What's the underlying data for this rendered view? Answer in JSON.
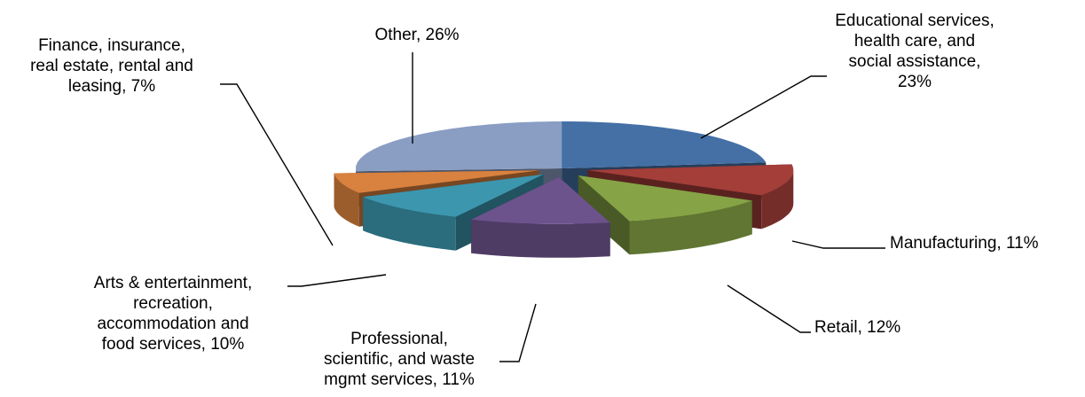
{
  "chart_data": {
    "type": "pie",
    "style": "3d-exploded",
    "legend": "none",
    "slices": [
      {
        "name": "Educational services, health care, and social assistance",
        "value": 23,
        "label_lines": [
          "Educational services,",
          "health care, and",
          "social assistance,",
          "23%"
        ],
        "color": "#4470A6"
      },
      {
        "name": "Manufacturing",
        "value": 11,
        "label_lines": [
          "Manufacturing, 11%"
        ],
        "color": "#A33E39"
      },
      {
        "name": "Retail",
        "value": 12,
        "label_lines": [
          "Retail, 12%"
        ],
        "color": "#86A446"
      },
      {
        "name": "Professional, scientific, and waste mgmt services",
        "value": 11,
        "label_lines": [
          "Professional,",
          "scientific, and waste",
          "mgmt services, 11%"
        ],
        "color": "#6C538C"
      },
      {
        "name": "Arts & entertainment, recreation, accommodation and food services",
        "value": 10,
        "label_lines": [
          "Arts & entertainment,",
          "recreation,",
          "accommodation and",
          "food services, 10%"
        ],
        "color": "#3C96AE"
      },
      {
        "name": "Finance, insurance, real estate, rental and leasing",
        "value": 7,
        "label_lines": [
          "Finance, insurance,",
          "real estate, rental and",
          "leasing, 7%"
        ],
        "color": "#D9813E"
      },
      {
        "name": "Other",
        "value": 26,
        "label_lines": [
          "Other, 26%"
        ],
        "color": "#8A9EC4"
      }
    ]
  }
}
